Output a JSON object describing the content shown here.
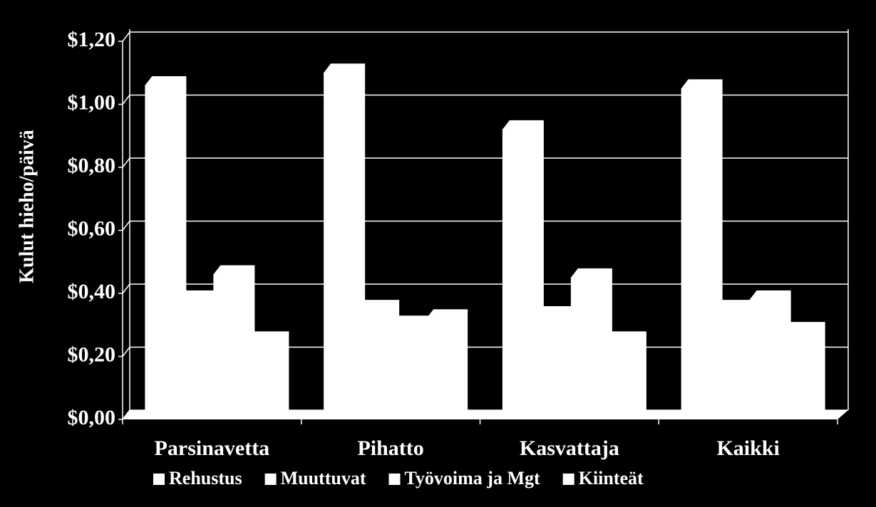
{
  "chart_data": {
    "type": "bar3d",
    "y_label": "Kulut hieho/päivä",
    "categories": [
      "Parsinavetta",
      "Pihatto",
      "Kasvattaja",
      "Kaikki"
    ],
    "series": [
      {
        "name": "Rehustus",
        "color": "#ffffff",
        "values": [
          1.06,
          1.1,
          0.92,
          1.05
        ]
      },
      {
        "name": "Muuttuvat",
        "color": "#ffffff",
        "values": [
          0.38,
          0.35,
          0.33,
          0.35
        ]
      },
      {
        "name": "Työvoima ja Mgt",
        "color": "#ffffff",
        "values": [
          0.46,
          0.3,
          0.45,
          0.38
        ]
      },
      {
        "name": "Kiinteät",
        "color": "#ffffff",
        "values": [
          0.25,
          0.32,
          0.25,
          0.28
        ]
      }
    ],
    "ylim": [
      0,
      1.2
    ],
    "yticks": [
      {
        "value": 0,
        "label": "$0,00"
      },
      {
        "value": 0.2,
        "label": "$0,20"
      },
      {
        "value": 0.4,
        "label": "$0,40"
      },
      {
        "value": 0.6,
        "label": "$0,60"
      },
      {
        "value": 0.8,
        "label": "$0,80"
      },
      {
        "value": 1.0,
        "label": "$1,00"
      },
      {
        "value": 1.2,
        "label": "$1,20"
      }
    ],
    "grid": true
  }
}
